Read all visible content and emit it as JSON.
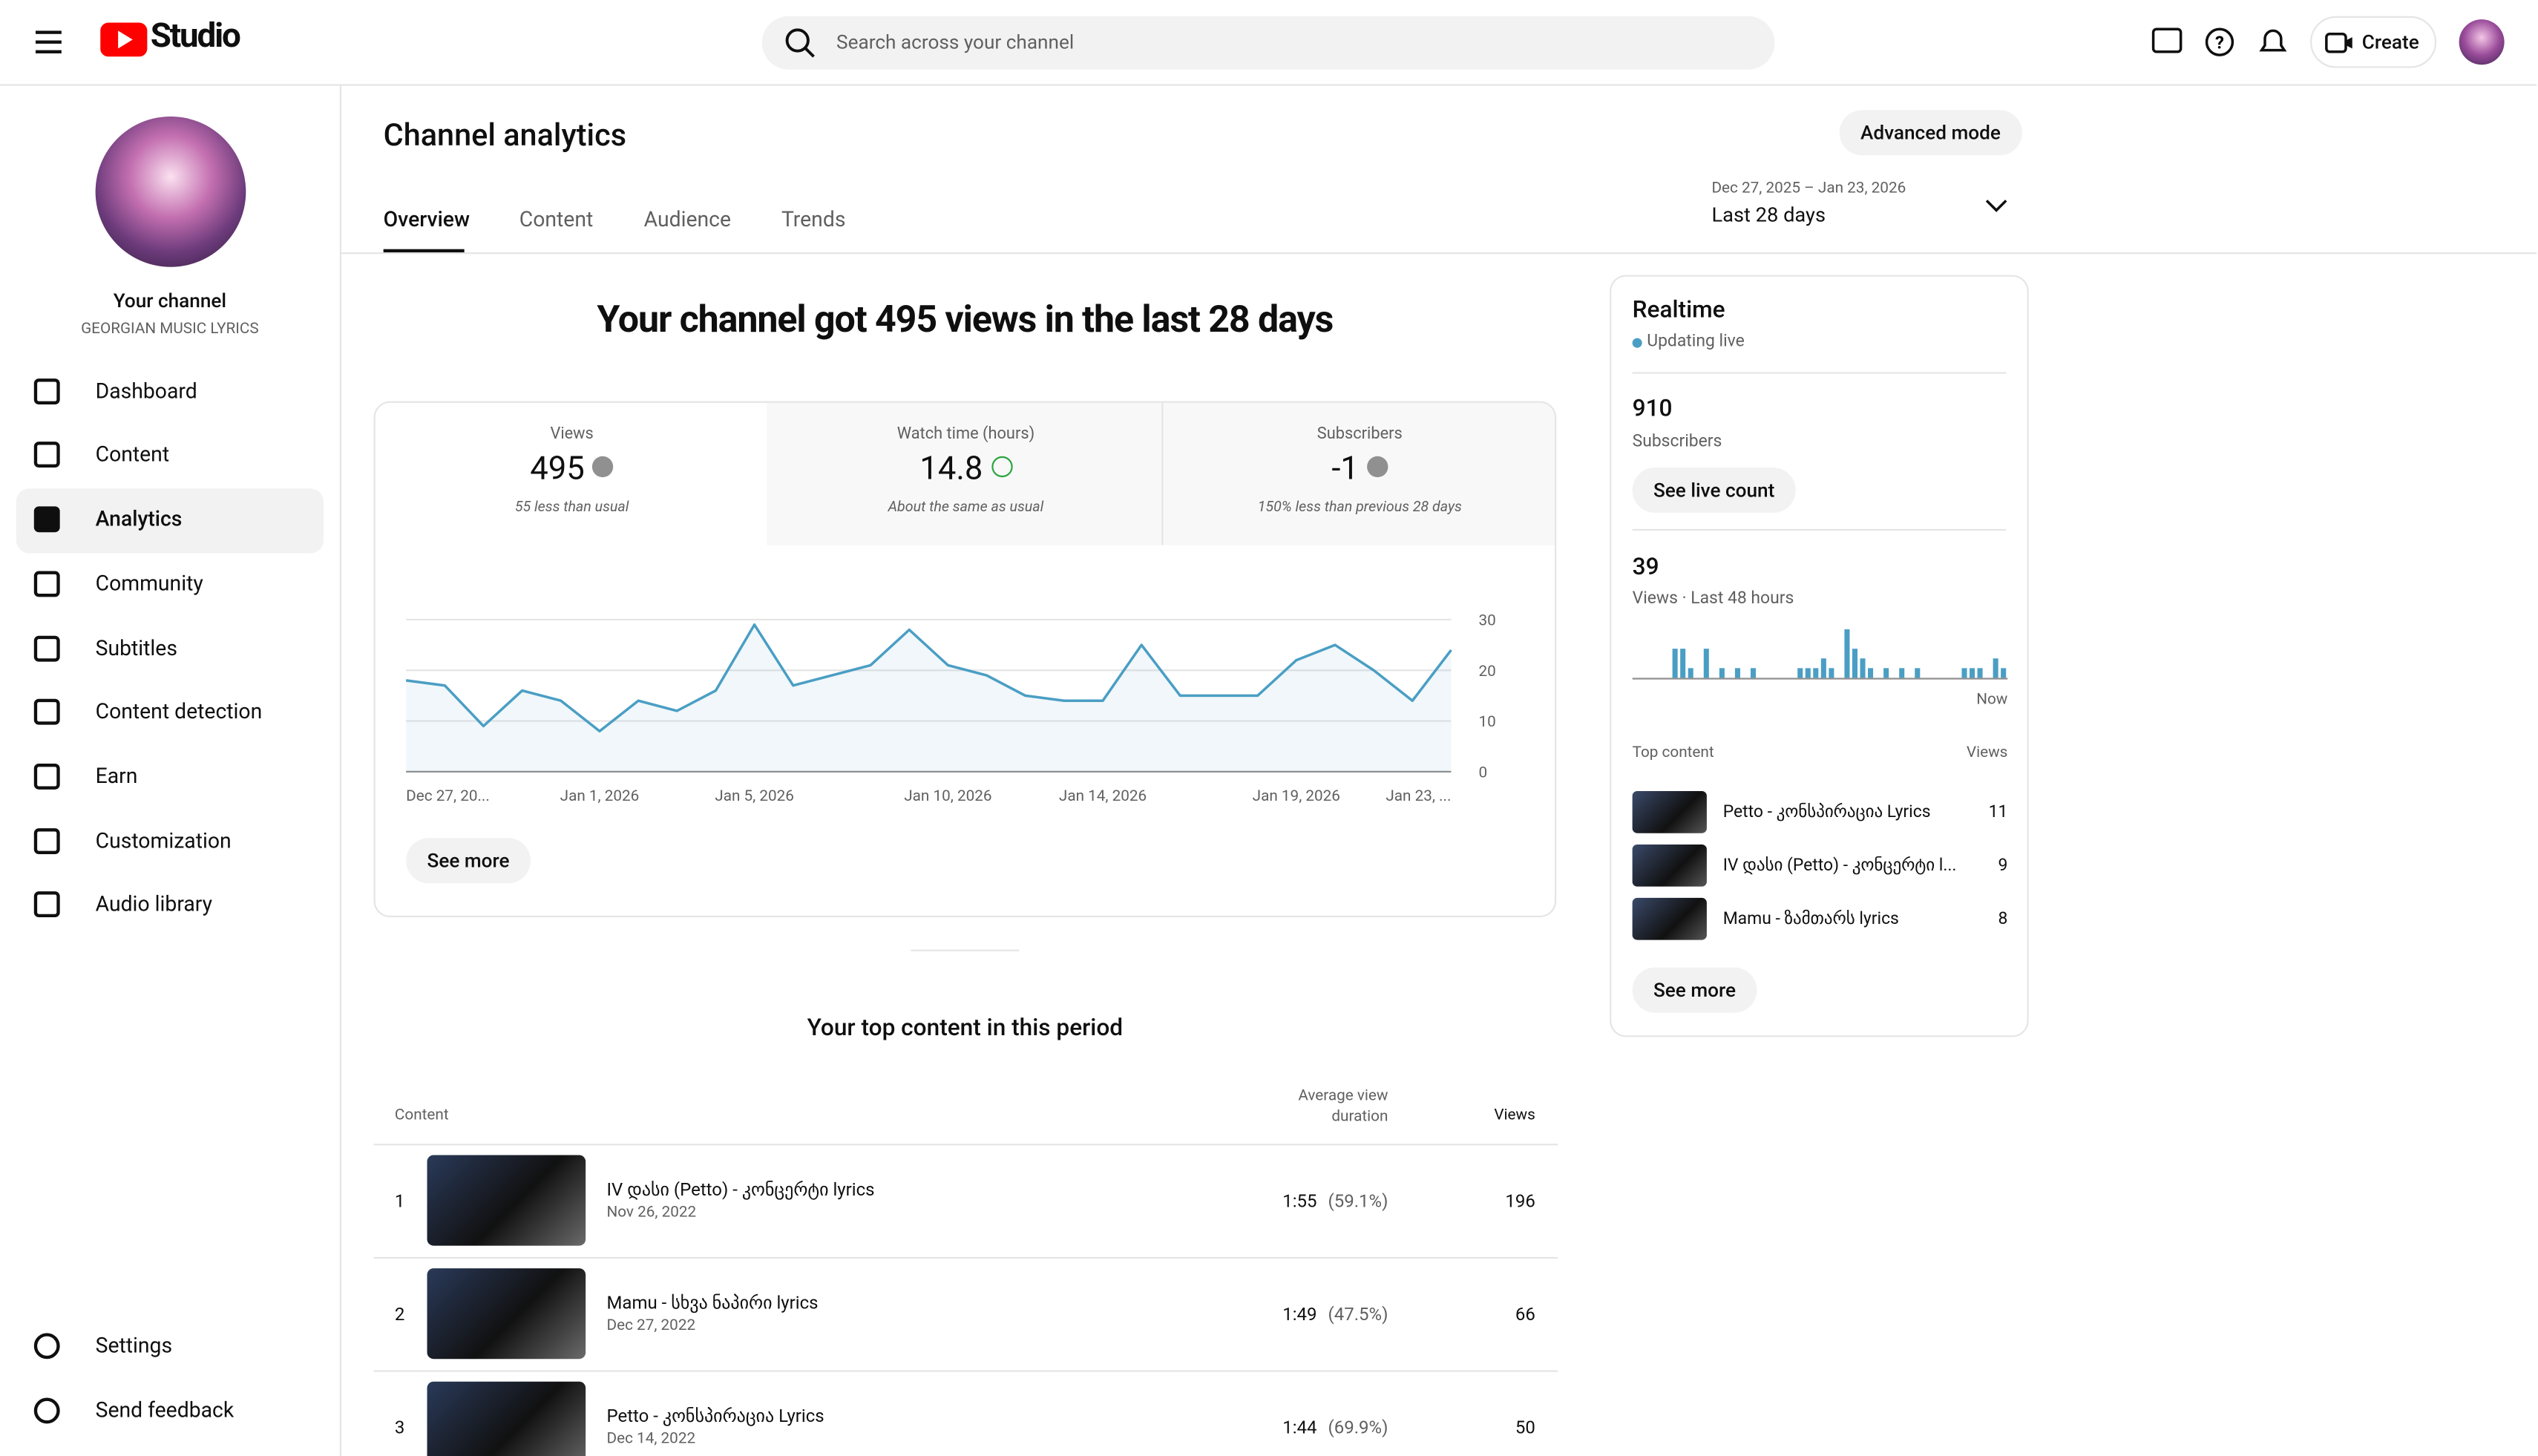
{
  "header": {
    "logo": "Studio",
    "search_placeholder": "Search across your channel",
    "create": "Create"
  },
  "sidebar": {
    "channel_name": "Your channel",
    "channel_subtitle": "GEORGIAN MUSIC LYRICS",
    "nav": [
      "Dashboard",
      "Content",
      "Analytics",
      "Community",
      "Subtitles",
      "Content detection",
      "Earn",
      "Customization",
      "Audio library"
    ],
    "footer_nav": [
      "Settings",
      "Send feedback"
    ]
  },
  "page": {
    "title": "Channel analytics",
    "advanced": "Advanced mode",
    "tabs": [
      "Overview",
      "Content",
      "Audience",
      "Trends"
    ],
    "date_range": "Dec 27, 2025 – Jan 23, 2026",
    "period": "Last 28 days",
    "headline": "Your channel got 495 views in the last 28 days"
  },
  "metrics": [
    {
      "label": "Views",
      "value": 495,
      "note": "55 less than usual"
    },
    {
      "label": "Watch time (hours)",
      "value": 14.8,
      "note": "About the same as usual"
    },
    {
      "label": "Subscribers",
      "value": -1,
      "note": "150% less than previous 28 days"
    }
  ],
  "chart_data": {
    "type": "line",
    "color": "#4a9ec4",
    "categories": [
      "Dec 27, 20...",
      null,
      null,
      null,
      null,
      "Jan 1, 2026",
      null,
      null,
      null,
      "Jan 5, 2026",
      null,
      null,
      null,
      null,
      "Jan 10, 2026",
      null,
      null,
      null,
      "Jan 14, 2026",
      null,
      null,
      null,
      null,
      "Jan 19, 2026",
      null,
      null,
      null,
      "Jan 23, ..."
    ],
    "values": [
      18,
      17,
      9,
      16,
      14,
      8,
      14,
      12,
      16,
      29,
      17,
      19,
      21,
      28,
      21,
      19,
      15,
      14,
      14,
      25,
      15,
      15,
      15,
      22,
      25,
      20,
      14,
      24
    ],
    "ylim": [
      0,
      30
    ],
    "yticks": [
      0,
      10,
      20,
      30
    ],
    "grid": true
  },
  "chart_see_more": "See more",
  "realtime": {
    "title": "Realtime",
    "status": "Updating live",
    "subscribers": 910,
    "subscribers_label": "Subscribers",
    "see_live": "See live count",
    "views": 39,
    "views_label": "Views · Last 48 hours",
    "hourly_views": [
      0,
      0,
      0,
      0,
      0,
      3,
      3,
      1,
      0,
      3,
      0,
      1,
      0,
      1,
      0,
      1,
      0,
      0,
      0,
      0,
      0,
      1,
      1,
      1,
      2,
      1,
      0,
      5,
      3,
      2,
      1,
      0,
      1,
      0,
      1,
      0,
      1,
      0,
      0,
      0,
      0,
      0,
      1,
      1,
      1,
      0,
      2,
      1
    ],
    "now": "Now",
    "top_content_label": "Top content",
    "views_col": "Views",
    "top": [
      {
        "title": "Petto - კონსპირაცია Lyrics",
        "views": 11
      },
      {
        "title": "IV დასი (Petto) - კონცერტი l...",
        "views": 9
      },
      {
        "title": "Mamu - ზამთარს lyrics",
        "views": 8
      }
    ],
    "see_more": "See more"
  },
  "top_content": {
    "title": "Your top content in this period",
    "columns": [
      "Content",
      "Average view duration",
      "Views"
    ],
    "rows": [
      {
        "rank": 1,
        "title": "IV დასი (Petto) - კონცერტი lyrics",
        "date": "Nov 26, 2022",
        "duration": "1:55",
        "percent": "(59.1%)",
        "views": 196
      },
      {
        "rank": 2,
        "title": "Mamu - სხვა ნაპირი lyrics",
        "date": "Dec 27, 2022",
        "duration": "1:49",
        "percent": "(47.5%)",
        "views": 66
      },
      {
        "rank": 3,
        "title": "Petto - კონსპირაცია Lyrics",
        "date": "Dec 14, 2022",
        "duration": "1:44",
        "percent": "(69.9%)",
        "views": 50
      }
    ]
  }
}
